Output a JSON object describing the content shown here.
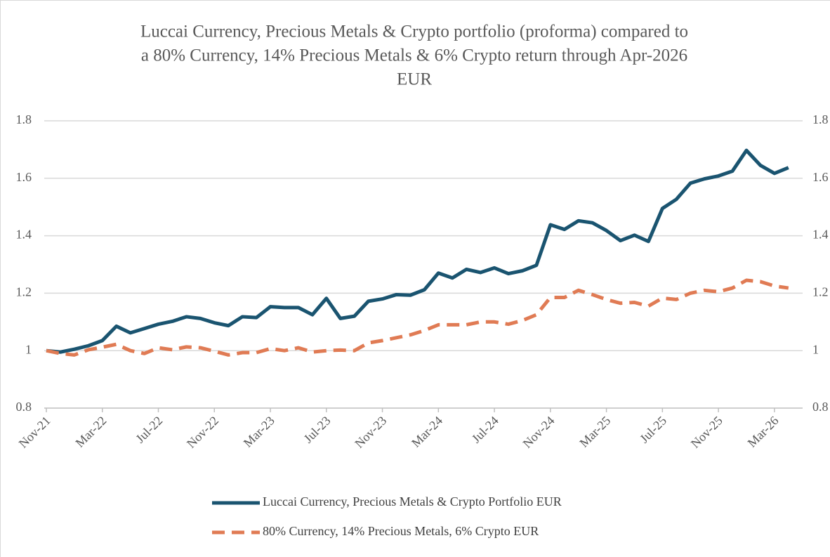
{
  "chart_data": {
    "type": "line",
    "title": [
      "Luccai Currency, Precious Metals & Crypto portfolio (proforma) compared to",
      "a 80% Currency, 14% Precious Metals & 6% Crypto return through Apr-2026",
      "EUR"
    ],
    "categories": [
      "Nov-21",
      null,
      null,
      null,
      "Mar-22",
      null,
      null,
      null,
      "Jul-22",
      null,
      null,
      null,
      "Nov-22",
      null,
      null,
      null,
      "Mar-23",
      null,
      null,
      null,
      "Jul-23",
      null,
      null,
      null,
      "Nov-23",
      null,
      null,
      null,
      "Mar-24",
      null,
      null,
      null,
      "Jul-24",
      null,
      null,
      null,
      "Nov-24",
      null,
      null,
      null,
      "Mar-25",
      null,
      null,
      null,
      "Jul-25",
      null,
      null,
      null,
      "Nov-25",
      null,
      null,
      null,
      "Mar-26",
      null
    ],
    "series": [
      {
        "name": "Luccai Currency, Precious Metals & Crypto Portfolio  EUR",
        "color": "#1a5470",
        "dash": "solid",
        "values": [
          1.0,
          0.995,
          1.005,
          1.017,
          1.035,
          1.085,
          1.062,
          1.077,
          1.092,
          1.102,
          1.118,
          1.112,
          1.097,
          1.087,
          1.118,
          1.115,
          1.153,
          1.15,
          1.15,
          1.125,
          1.182,
          1.112,
          1.12,
          1.172,
          1.18,
          1.195,
          1.193,
          1.212,
          1.27,
          1.253,
          1.283,
          1.272,
          1.288,
          1.268,
          1.278,
          1.297,
          1.438,
          1.422,
          1.452,
          1.445,
          1.418,
          1.383,
          1.402,
          1.38,
          1.495,
          1.527,
          1.583,
          1.598,
          1.608,
          1.625,
          1.697,
          1.645,
          1.617,
          1.637
        ]
      },
      {
        "name": "80% Currency, 14% Precious Metals, 6% Crypto  EUR",
        "color": "#e07b54",
        "dash": "dashed",
        "values": [
          1.0,
          0.99,
          0.985,
          1.003,
          1.012,
          1.022,
          1.0,
          0.99,
          1.01,
          1.003,
          1.013,
          1.01,
          0.998,
          0.985,
          0.993,
          0.993,
          1.007,
          1.0,
          1.01,
          0.995,
          1.0,
          1.002,
          1.0,
          1.027,
          1.035,
          1.045,
          1.055,
          1.07,
          1.09,
          1.09,
          1.09,
          1.1,
          1.1,
          1.092,
          1.105,
          1.125,
          1.185,
          1.185,
          1.21,
          1.195,
          1.178,
          1.165,
          1.168,
          1.155,
          1.183,
          1.178,
          1.2,
          1.21,
          1.205,
          1.218,
          1.245,
          1.24,
          1.225,
          1.218
        ]
      }
    ],
    "ylim": [
      0.8,
      1.8
    ],
    "yticks": [
      0.8,
      1,
      1.2,
      1.4,
      1.6,
      1.8
    ],
    "y2lim": [
      0.8,
      1.8
    ],
    "y2ticks": [
      0.8,
      1,
      1.2,
      1.4,
      1.6,
      1.8
    ],
    "grid": true,
    "legend": "bottom"
  }
}
